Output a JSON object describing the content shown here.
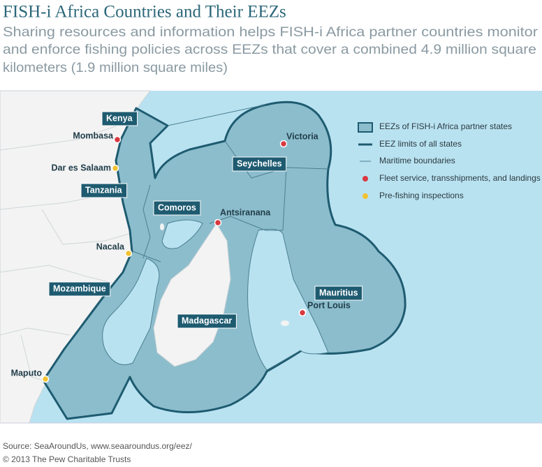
{
  "header": {
    "title": "FISH-i Africa Countries and Their EEZs",
    "subtitle": [
      "Sharing resources and information helps FISH-i Africa partner countries monitor",
      "and enforce fishing policies across EEZs that cover a combined 4.9 million square",
      "kilometers (1.9 million square miles)"
    ]
  },
  "map": {
    "countries": [
      "Kenya",
      "Tanzania",
      "Comoros",
      "Seychelles",
      "Mozambique",
      "Madagascar",
      "Mauritius"
    ],
    "places": [
      "Mombasa",
      "Dar es Salaam",
      "Nacala",
      "Maputo",
      "Antsiranana",
      "Victoria",
      "Port Louis"
    ]
  },
  "legend": [
    "EEZs of FISH-i Africa partner states",
    "EEZ limits of all states",
    "Maritime boundaries",
    "Fleet service, transshipments, and landings",
    "Pre-fishing inspections"
  ],
  "footer": {
    "source": "Source: SeaAroundUs, www.seaaroundus.org/eez/",
    "copyright": "© 2013 The Pew Charitable Trusts"
  }
}
